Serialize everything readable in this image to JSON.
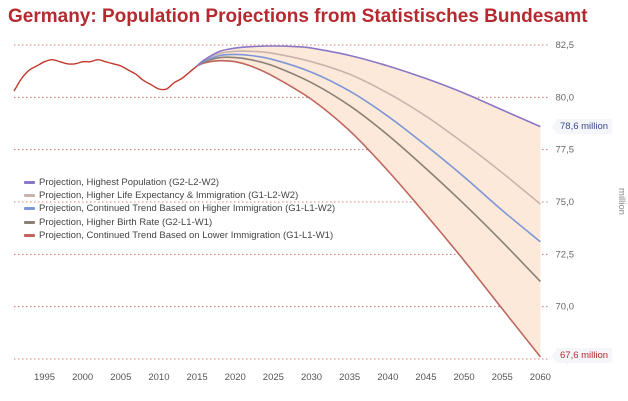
{
  "title": "Germany: Population Projections from Statistisches Bundesamt",
  "chart_data": {
    "type": "line",
    "title": "Germany: Population Projections from Statistisches Bundesamt",
    "ylabel": "million",
    "xlim": [
      1991,
      2061
    ],
    "ylim": [
      67.5,
      82.5
    ],
    "y_ticks": [
      "82,5",
      "80,0",
      "77,5",
      "75,0",
      "72,5",
      "70,0",
      "67,5"
    ],
    "y_tick_values": [
      82.5,
      80.0,
      77.5,
      75.0,
      72.5,
      70.0,
      67.5
    ],
    "x_ticks": [
      "1995",
      "2000",
      "2005",
      "2010",
      "2015",
      "2020",
      "2025",
      "2030",
      "2035",
      "2040",
      "2045",
      "2050",
      "2055",
      "2060"
    ],
    "x_tick_values": [
      1995,
      2000,
      2005,
      2010,
      2015,
      2020,
      2025,
      2030,
      2035,
      2040,
      2045,
      2050,
      2055,
      2060
    ],
    "grid": "horizontal dotted",
    "legend_position": "left-middle",
    "band": {
      "upper": "Projection, Highest Population (G2-L2-W2)",
      "lower": "Projection, Continued Trend Based on Lower Immigration (G1-L1-W1)",
      "color": "#fde9d9"
    },
    "historical": {
      "color": "#c0392b",
      "x": [
        1991,
        1992,
        1993,
        1994,
        1995,
        1996,
        1997,
        1998,
        1999,
        2000,
        2001,
        2002,
        2003,
        2004,
        2005,
        2006,
        2007,
        2008,
        2009,
        2010,
        2011,
        2012,
        2013,
        2014,
        2015
      ],
      "y": [
        80.3,
        80.9,
        81.3,
        81.5,
        81.7,
        81.8,
        81.7,
        81.6,
        81.6,
        81.7,
        81.7,
        81.8,
        81.7,
        81.6,
        81.5,
        81.3,
        81.1,
        80.8,
        80.6,
        80.4,
        80.4,
        80.7,
        80.9,
        81.2,
        81.5
      ]
    },
    "series": [
      {
        "name": "Projection, Highest Population (G2-L2-W2)",
        "color": "#8a77c6",
        "x": [
          2015,
          2016,
          2018,
          2020,
          2022,
          2025,
          2028,
          2030,
          2035,
          2040,
          2045,
          2050,
          2055,
          2060
        ],
        "y": [
          81.5,
          81.8,
          82.2,
          82.35,
          82.42,
          82.45,
          82.42,
          82.35,
          82.0,
          81.5,
          80.9,
          80.2,
          79.4,
          78.6
        ],
        "end_label": "78,6 million"
      },
      {
        "name": "Projection, Higher Life Expectancy & Immigration (G1-L2-W2)",
        "color": "#c9b3ae",
        "x": [
          2015,
          2016,
          2018,
          2020,
          2022,
          2025,
          2030,
          2035,
          2040,
          2045,
          2050,
          2055,
          2060
        ],
        "y": [
          81.5,
          81.8,
          82.1,
          82.2,
          82.2,
          82.1,
          81.7,
          81.1,
          80.2,
          79.1,
          77.8,
          76.4,
          74.9
        ]
      },
      {
        "name": "Projection, Continued Trend Based on Higher Immigration (G1-L1-W2)",
        "color": "#7d96d6",
        "x": [
          2015,
          2016,
          2018,
          2020,
          2022,
          2025,
          2030,
          2035,
          2040,
          2045,
          2050,
          2055,
          2060
        ],
        "y": [
          81.5,
          81.75,
          82.0,
          82.05,
          82.0,
          81.8,
          81.2,
          80.3,
          79.1,
          77.7,
          76.2,
          74.6,
          73.1
        ]
      },
      {
        "name": "Projection, Higher Birth Rate (G2-L1-W1)",
        "color": "#8a8176",
        "x": [
          2015,
          2016,
          2018,
          2020,
          2022,
          2025,
          2030,
          2035,
          2040,
          2045,
          2050,
          2055,
          2060
        ],
        "y": [
          81.5,
          81.7,
          81.9,
          81.9,
          81.8,
          81.5,
          80.7,
          79.6,
          78.2,
          76.6,
          74.9,
          73.1,
          71.2
        ]
      },
      {
        "name": "Projection, Continued Trend Based on Lower Immigration (G1-L1-W1)",
        "color": "#c0655e",
        "x": [
          2015,
          2016,
          2018,
          2020,
          2022,
          2025,
          2030,
          2035,
          2040,
          2045,
          2050,
          2055,
          2060
        ],
        "y": [
          81.5,
          81.65,
          81.75,
          81.7,
          81.5,
          81.0,
          79.9,
          78.4,
          76.5,
          74.4,
          72.2,
          69.9,
          67.6
        ],
        "end_label": "67,6 million"
      }
    ]
  }
}
